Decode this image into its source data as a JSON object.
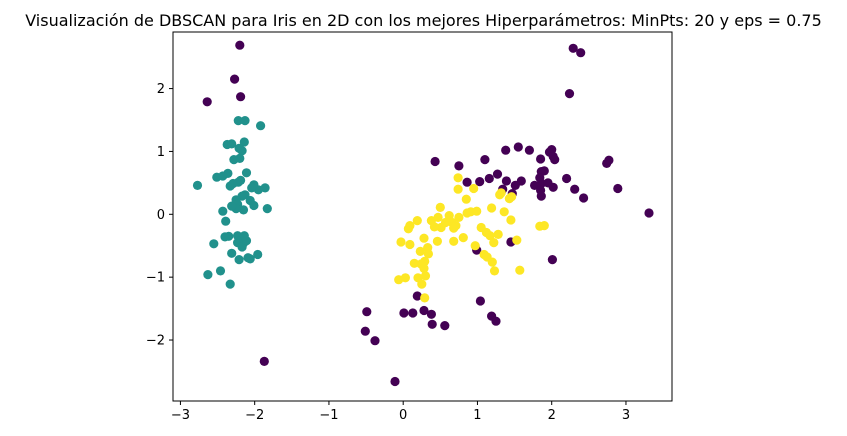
{
  "chart_data": {
    "type": "scatter",
    "title": "Visualización de DBSCAN para Iris en 2D con los mejores Hiperparámetros: MinPts: 20 y eps = 0.75",
    "xlabel": "",
    "ylabel": "",
    "xlim": [
      -3.1,
      3.62
    ],
    "ylim": [
      -2.97,
      2.9
    ],
    "xticks": [
      -3,
      -2,
      -1,
      0,
      1,
      2,
      3
    ],
    "yticks": [
      -2,
      -1,
      0,
      1,
      2
    ],
    "grid": false,
    "legend": "none",
    "colors": {
      "noise": "#440154",
      "cluster_0": "#21918c",
      "cluster_1": "#fde725"
    },
    "series": [
      {
        "color": "#440154",
        "points": [
          [
            -2.2,
            2.69
          ],
          [
            -2.27,
            2.15
          ],
          [
            -2.19,
            1.87
          ],
          [
            -2.64,
            1.79
          ],
          [
            -1.87,
            -2.34
          ],
          [
            2.29,
            2.64
          ],
          [
            2.39,
            2.57
          ],
          [
            2.24,
            1.92
          ],
          [
            0.43,
            0.84
          ],
          [
            0.75,
            0.77
          ],
          [
            1.1,
            0.87
          ],
          [
            1.38,
            1.02
          ],
          [
            1.55,
            1.07
          ],
          [
            1.7,
            1.02
          ],
          [
            1.85,
            0.88
          ],
          [
            1.97,
            0.99
          ],
          [
            2.0,
            1.03
          ],
          [
            2.02,
            0.92
          ],
          [
            2.04,
            0.87
          ],
          [
            2.74,
            0.81
          ],
          [
            2.77,
            0.86
          ],
          [
            3.31,
            0.02
          ],
          [
            2.89,
            0.41
          ],
          [
            0.86,
            0.51
          ],
          [
            1.03,
            0.52
          ],
          [
            1.16,
            0.57
          ],
          [
            1.27,
            0.64
          ],
          [
            1.39,
            0.53
          ],
          [
            1.51,
            0.46
          ],
          [
            1.59,
            0.53
          ],
          [
            1.77,
            0.46
          ],
          [
            1.86,
            0.68
          ],
          [
            1.9,
            0.69
          ],
          [
            1.84,
            0.58
          ],
          [
            1.86,
            0.49
          ],
          [
            1.85,
            0.38
          ],
          [
            1.86,
            0.29
          ],
          [
            2.02,
            0.43
          ],
          [
            2.2,
            0.57
          ],
          [
            2.31,
            0.4
          ],
          [
            2.43,
            0.26
          ],
          [
            1.34,
            0.4
          ],
          [
            1.47,
            0.33
          ],
          [
            1.95,
            0.5
          ],
          [
            1.45,
            -0.44
          ],
          [
            2.01,
            -0.72
          ],
          [
            0.99,
            -0.57
          ],
          [
            1.04,
            -1.38
          ],
          [
            1.19,
            -1.62
          ],
          [
            1.25,
            -1.7
          ],
          [
            -0.49,
            -1.55
          ],
          [
            -0.51,
            -1.86
          ],
          [
            -0.38,
            -2.01
          ],
          [
            -0.11,
            -2.66
          ],
          [
            0.01,
            -1.57
          ],
          [
            0.13,
            -1.57
          ],
          [
            0.19,
            -1.3
          ],
          [
            0.28,
            -1.53
          ],
          [
            0.38,
            -1.59
          ],
          [
            0.39,
            -1.75
          ],
          [
            0.56,
            -1.77
          ]
        ]
      },
      {
        "color": "#21918c",
        "points": [
          [
            -2.22,
            1.49
          ],
          [
            -2.13,
            1.49
          ],
          [
            -1.92,
            1.41
          ],
          [
            -2.37,
            1.11
          ],
          [
            -2.31,
            1.12
          ],
          [
            -2.17,
            1.01
          ],
          [
            -2.14,
            1.15
          ],
          [
            -2.21,
            1.05
          ],
          [
            -2.2,
            0.89
          ],
          [
            -2.28,
            0.87
          ],
          [
            -2.36,
            0.65
          ],
          [
            -2.51,
            0.59
          ],
          [
            -2.43,
            0.61
          ],
          [
            -2.11,
            0.66
          ],
          [
            -2.77,
            0.46
          ],
          [
            -2.33,
            0.45
          ],
          [
            -2.29,
            0.49
          ],
          [
            -2.22,
            0.51
          ],
          [
            -2.19,
            0.54
          ],
          [
            -2.01,
            0.47
          ],
          [
            -1.95,
            0.39
          ],
          [
            -1.86,
            0.42
          ],
          [
            -2.04,
            0.42
          ],
          [
            -2.13,
            0.31
          ],
          [
            -2.17,
            0.29
          ],
          [
            -2.25,
            0.23
          ],
          [
            -2.23,
            0.16
          ],
          [
            -2.06,
            0.22
          ],
          [
            -2.01,
            0.14
          ],
          [
            -2.15,
            0.07
          ],
          [
            -2.25,
            0.09
          ],
          [
            -2.31,
            0.13
          ],
          [
            -2.43,
            0.05
          ],
          [
            -1.83,
            0.09
          ],
          [
            -2.39,
            -0.11
          ],
          [
            -2.4,
            -0.36
          ],
          [
            -2.35,
            -0.35
          ],
          [
            -2.23,
            -0.34
          ],
          [
            -2.23,
            -0.45
          ],
          [
            -2.18,
            -0.41
          ],
          [
            -2.15,
            -0.46
          ],
          [
            -2.17,
            -0.52
          ],
          [
            -2.31,
            -0.62
          ],
          [
            -2.21,
            -0.72
          ],
          [
            -2.09,
            -0.69
          ],
          [
            -2.06,
            -0.71
          ],
          [
            -1.96,
            -0.64
          ],
          [
            -2.55,
            -0.47
          ],
          [
            -2.46,
            -0.9
          ],
          [
            -2.63,
            -0.96
          ],
          [
            -2.33,
            -1.11
          ],
          [
            -2.11,
            -0.42
          ],
          [
            -2.14,
            -0.34
          ]
        ]
      },
      {
        "color": "#fde725",
        "points": [
          [
            0.74,
            0.58
          ],
          [
            0.74,
            0.4
          ],
          [
            0.95,
            0.41
          ],
          [
            1.3,
            0.31
          ],
          [
            1.43,
            0.25
          ],
          [
            1.46,
            0.28
          ],
          [
            0.85,
            0.24
          ],
          [
            0.86,
            0.02
          ],
          [
            0.91,
            0.04
          ],
          [
            0.99,
            0.05
          ],
          [
            1.19,
            0.1
          ],
          [
            1.36,
            0.04
          ],
          [
            0.5,
            0.11
          ],
          [
            0.47,
            -0.05
          ],
          [
            0.62,
            -0.02
          ],
          [
            0.75,
            -0.05
          ],
          [
            0.66,
            -0.13
          ],
          [
            0.71,
            -0.18
          ],
          [
            0.68,
            -0.22
          ],
          [
            0.57,
            -0.13
          ],
          [
            0.51,
            -0.21
          ],
          [
            0.42,
            -0.2
          ],
          [
            0.38,
            -0.1
          ],
          [
            0.19,
            -0.1
          ],
          [
            0.07,
            -0.23
          ],
          [
            0.09,
            -0.18
          ],
          [
            0.46,
            -0.43
          ],
          [
            0.28,
            -0.38
          ],
          [
            0.33,
            -0.53
          ],
          [
            0.09,
            -0.48
          ],
          [
            -0.03,
            -0.44
          ],
          [
            1.05,
            -0.21
          ],
          [
            1.12,
            -0.29
          ],
          [
            1.17,
            -0.34
          ],
          [
            1.22,
            -0.45
          ],
          [
            1.28,
            -0.32
          ],
          [
            1.45,
            -0.09
          ],
          [
            1.53,
            -0.41
          ],
          [
            1.84,
            -0.19
          ],
          [
            1.9,
            -0.18
          ],
          [
            0.81,
            -0.37
          ],
          [
            0.97,
            -0.5
          ],
          [
            1.09,
            -0.64
          ],
          [
            1.13,
            -0.68
          ],
          [
            1.2,
            -0.76
          ],
          [
            1.23,
            -0.9
          ],
          [
            1.57,
            -0.89
          ],
          [
            0.68,
            -0.43
          ],
          [
            0.34,
            -0.63
          ],
          [
            0.23,
            -0.59
          ],
          [
            0.29,
            -0.75
          ],
          [
            0.24,
            -0.79
          ],
          [
            0.15,
            -0.78
          ],
          [
            0.28,
            -0.86
          ],
          [
            0.3,
            -0.98
          ],
          [
            0.2,
            -1.01
          ],
          [
            0.03,
            -1.01
          ],
          [
            -0.06,
            -1.04
          ],
          [
            0.25,
            -1.11
          ],
          [
            0.29,
            -1.33
          ],
          [
            1.32,
            0.34
          ]
        ]
      }
    ]
  }
}
